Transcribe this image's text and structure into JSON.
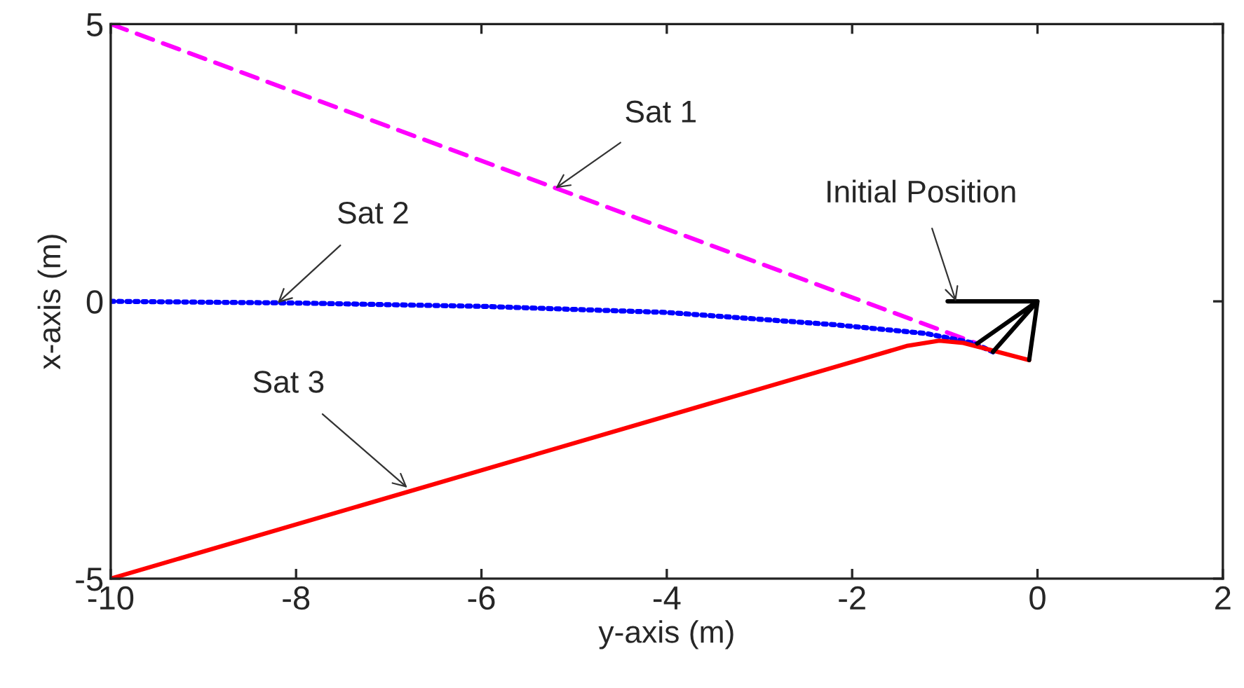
{
  "chart_data": {
    "type": "line",
    "xlabel": "y-axis (m)",
    "ylabel": "x-axis (m)",
    "xlim": [
      -10,
      2
    ],
    "xticks": [
      -10,
      -8,
      -6,
      -4,
      -2,
      0,
      2
    ],
    "ylim": [
      -5,
      5
    ],
    "yticks": [
      -5,
      0,
      5
    ],
    "grid": false,
    "series": [
      {
        "color": "#ff00ff",
        "line_style": "dashed",
        "x": [
          -10,
          -0.65
        ],
        "values": [
          5,
          -0.76
        ]
      },
      {
        "color": "#0000ff",
        "line_style": "dotted",
        "x": [
          -10,
          -8,
          -6,
          -4,
          -2.2,
          -1.2,
          -0.7,
          -0.48
        ],
        "values": [
          0,
          -0.03,
          -0.09,
          -0.2,
          -0.42,
          -0.58,
          -0.75,
          -0.91
        ]
      },
      {
        "color": "#ff0000",
        "line_style": "solid",
        "x": [
          -10,
          -1.4,
          -1.06,
          -0.8,
          -0.5,
          -0.09
        ],
        "values": [
          -5,
          -0.8,
          -0.71,
          -0.75,
          -0.88,
          -1.06
        ]
      },
      {
        "color": "#000000",
        "line_style": "solid",
        "x": [
          -0.97,
          0,
          -0.65,
          0,
          -0.48,
          0,
          -0.09
        ],
        "values": [
          0,
          0,
          -0.76,
          0,
          -0.91,
          0,
          -1.06
        ]
      }
    ],
    "annotations": [
      {
        "text": "Sat 1",
        "x": -5.2,
        "y": 2.04
      },
      {
        "text": "Sat 2",
        "x": -8.2,
        "y": -0.03
      },
      {
        "text": "Sat 3",
        "x": -6.8,
        "y": -3.36
      },
      {
        "text": "Initial Position",
        "x": -0.88,
        "y": 0
      }
    ]
  }
}
